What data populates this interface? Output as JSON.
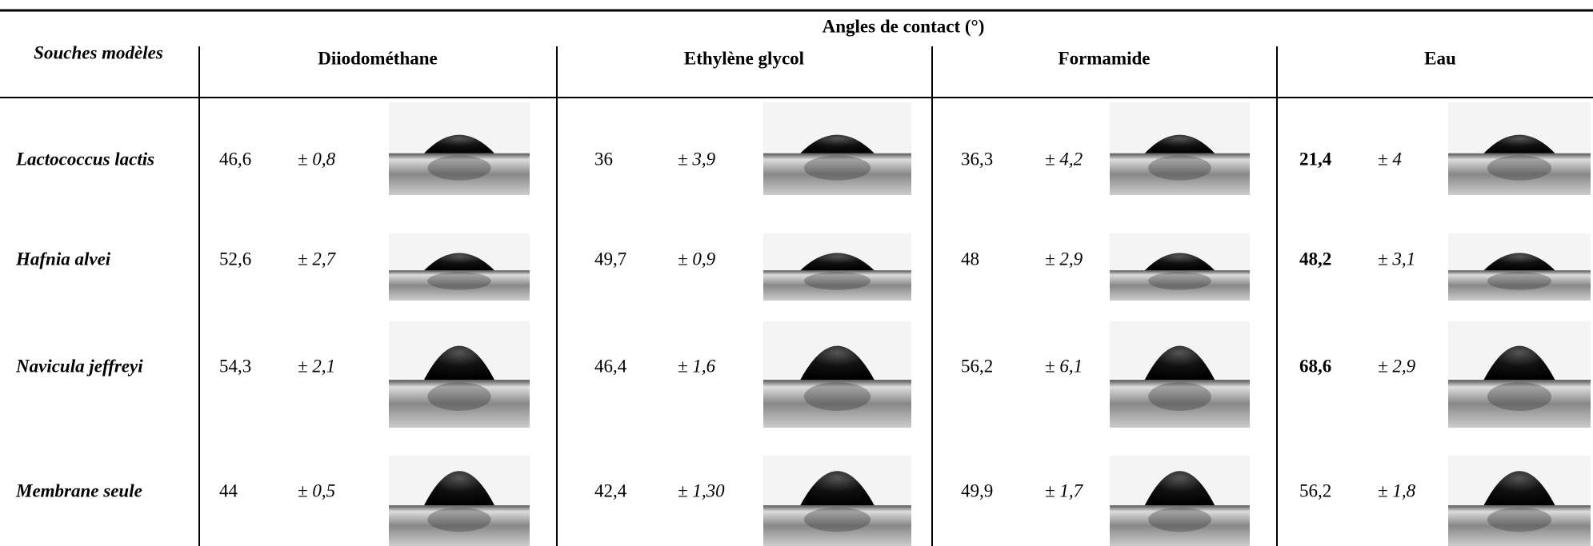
{
  "table": {
    "header": {
      "title": "Angles de contact (°)",
      "row_label": "Souches modèles"
    },
    "columns": [
      "Diiodométhane",
      "Ethylène glycol",
      "Formamide",
      "Eau"
    ],
    "rows": [
      {
        "label": "Lactococcus lactis",
        "cells": [
          {
            "value": "46,6",
            "sd": "± 0,8"
          },
          {
            "value": "36",
            "sd": "± 3,9"
          },
          {
            "value": "36,3",
            "sd": "± 4,2"
          },
          {
            "value": "21,4",
            "sd": "± 4"
          }
        ]
      },
      {
        "label": "Hafnia alvei",
        "cells": [
          {
            "value": "52,6",
            "sd": "± 2,7"
          },
          {
            "value": "49,7",
            "sd": "± 0,9"
          },
          {
            "value": "48",
            "sd": "± 2,9"
          },
          {
            "value": "48,2",
            "sd": "± 3,1"
          }
        ]
      },
      {
        "label": "Navicula jeffreyi",
        "cells": [
          {
            "value": "54,3",
            "sd": "± 2,1"
          },
          {
            "value": "46,4",
            "sd": "± 1,6"
          },
          {
            "value": "56,2",
            "sd": "± 6,1"
          },
          {
            "value": "68,6",
            "sd": "± 2,9"
          }
        ]
      },
      {
        "label": "Membrane seule",
        "cells": [
          {
            "value": "44",
            "sd": "± 0,5"
          },
          {
            "value": "42,4",
            "sd": "± 1,30"
          },
          {
            "value": "49,9",
            "sd": "± 1,7"
          },
          {
            "value": "56,2",
            "sd": "± 1,8"
          }
        ]
      }
    ]
  }
}
